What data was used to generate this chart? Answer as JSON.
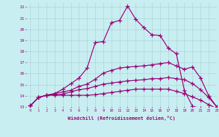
{
  "xlabel": "Windchill (Refroidissement éolien,°C)",
  "xlim": [
    -0.5,
    23
  ],
  "ylim": [
    13,
    22.4
  ],
  "xticks": [
    0,
    1,
    2,
    3,
    4,
    5,
    6,
    7,
    8,
    9,
    10,
    11,
    12,
    13,
    14,
    15,
    16,
    17,
    18,
    19,
    20,
    21,
    22,
    23
  ],
  "yticks": [
    13,
    14,
    15,
    16,
    17,
    18,
    19,
    20,
    21,
    22
  ],
  "background_color": "#c9eef1",
  "grid_color": "#aad4d8",
  "line_color": "#990077",
  "line_width": 0.9,
  "marker": "+",
  "marker_size": 4,
  "curves": [
    [
      13.1,
      13.85,
      14.05,
      14.2,
      14.6,
      15.1,
      15.6,
      16.5,
      18.8,
      18.9,
      20.6,
      20.8,
      22.1,
      20.9,
      20.15,
      19.5,
      19.45,
      18.3,
      17.8,
      14.5,
      13.05,
      12.9,
      12.9,
      12.85
    ],
    [
      13.1,
      13.85,
      14.05,
      14.2,
      14.35,
      14.5,
      14.85,
      15.05,
      15.5,
      16.05,
      16.3,
      16.5,
      16.6,
      16.65,
      16.7,
      16.8,
      16.9,
      17.0,
      16.7,
      16.4,
      16.6,
      15.6,
      14.0,
      13.0
    ],
    [
      13.1,
      13.85,
      14.05,
      14.1,
      14.15,
      14.35,
      14.55,
      14.65,
      14.85,
      15.05,
      15.15,
      15.25,
      15.35,
      15.4,
      15.45,
      15.55,
      15.55,
      15.65,
      15.55,
      15.45,
      15.1,
      14.55,
      13.85,
      13.0
    ],
    [
      13.1,
      13.85,
      14.05,
      14.05,
      14.05,
      14.05,
      14.05,
      14.05,
      14.1,
      14.2,
      14.3,
      14.4,
      14.5,
      14.6,
      14.6,
      14.6,
      14.6,
      14.6,
      14.4,
      14.2,
      13.9,
      13.6,
      13.2,
      12.85
    ]
  ]
}
